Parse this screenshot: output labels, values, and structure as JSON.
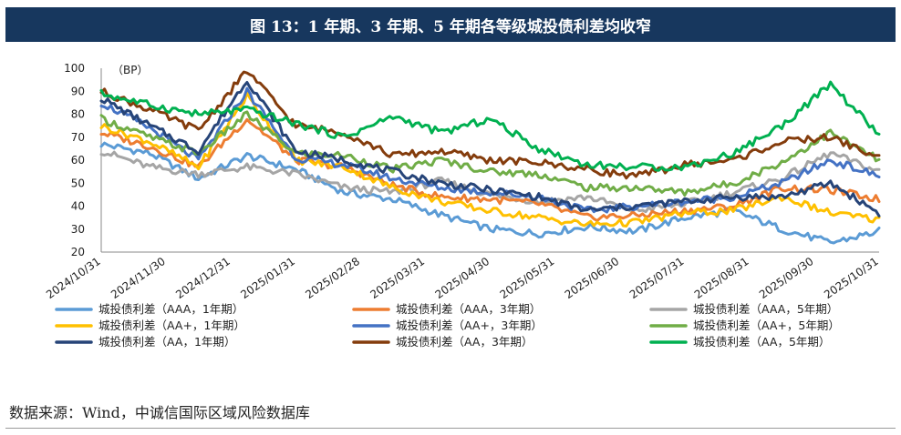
{
  "title": "图 13：1 年期、3 年期、5 年期各等级城投债利差均收窄",
  "source": "数据来源：Wind，中诚信国际区域风险数据库",
  "chart_data": {
    "type": "line",
    "ylabel": "（BP）",
    "ylim": [
      20,
      100
    ],
    "yticks": [
      20,
      30,
      40,
      50,
      60,
      70,
      80,
      90,
      100
    ],
    "x_tick_labels": [
      "2024/10/31",
      "2024/11/30",
      "2024/12/31",
      "2025/01/31",
      "2025/02/28",
      "2025/03/31",
      "2025/04/30",
      "2025/05/31",
      "2025/06/30",
      "2025/07/31",
      "2025/08/31",
      "2025/09/30",
      "2025/10/31"
    ],
    "grid": false,
    "legend_position": "bottom",
    "colors": {
      "AAA_1": "#5b9bd5",
      "AAA_3": "#ed7d31",
      "AAA_5": "#a5a5a5",
      "AAp_1": "#ffc000",
      "AAp_3": "#4472c4",
      "AAp_5": "#70ad47",
      "AA_1": "#264478",
      "AA_3": "#843c0c",
      "AA_5": "#00b050"
    },
    "series": [
      {
        "name": "城投债利差（AAA，1年期）",
        "key": "AAA_1",
        "values": [
          67,
          63,
          52,
          62,
          56,
          46,
          43,
          36,
          30,
          28,
          31,
          29,
          35,
          38,
          30,
          24,
          29
        ]
      },
      {
        "name": "城投债利差（AAA，3年期）",
        "key": "AAA_3",
        "values": [
          72,
          66,
          57,
          78,
          60,
          57,
          49,
          44,
          43,
          41,
          35,
          36,
          38,
          40,
          48,
          47,
          43
        ]
      },
      {
        "name": "城投债利差（AAA，5年期）",
        "key": "AAA_5",
        "values": [
          64,
          57,
          54,
          57,
          54,
          48,
          46,
          51,
          45,
          42,
          44,
          38,
          41,
          46,
          52,
          63,
          55
        ]
      },
      {
        "name": "城投债利差（AA+，1年期）",
        "key": "AAp_1",
        "values": [
          75,
          68,
          57,
          88,
          60,
          57,
          48,
          42,
          38,
          35,
          32,
          33,
          37,
          38,
          44,
          37,
          34
        ]
      },
      {
        "name": "城投债利差（AA+，3年期）",
        "key": "AAp_3",
        "values": [
          85,
          74,
          60,
          90,
          61,
          58,
          52,
          48,
          46,
          44,
          38,
          40,
          42,
          44,
          50,
          60,
          53
        ]
      },
      {
        "name": "城投债利差（AA+，5年期）",
        "key": "AAp_5",
        "values": [
          78,
          70,
          63,
          80,
          63,
          62,
          56,
          60,
          55,
          54,
          48,
          48,
          46,
          50,
          59,
          72,
          60
        ]
      },
      {
        "name": "城投债利差（AA，1年期）",
        "key": "AA_1",
        "values": [
          87,
          75,
          64,
          95,
          64,
          60,
          55,
          50,
          47,
          44,
          38,
          40,
          42,
          44,
          44,
          50,
          37
        ]
      },
      {
        "name": "城投债利差（AA，3年期）",
        "key": "AA_3",
        "values": [
          90,
          82,
          73,
          99,
          75,
          72,
          62,
          64,
          60,
          59,
          56,
          53,
          58,
          60,
          68,
          70,
          61
        ]
      },
      {
        "name": "城投债利差（AA，5年期）",
        "key": "AA_5",
        "values": [
          89,
          84,
          80,
          82,
          76,
          70,
          79,
          72,
          78,
          65,
          58,
          57,
          57,
          63,
          75,
          93,
          71
        ]
      }
    ]
  }
}
